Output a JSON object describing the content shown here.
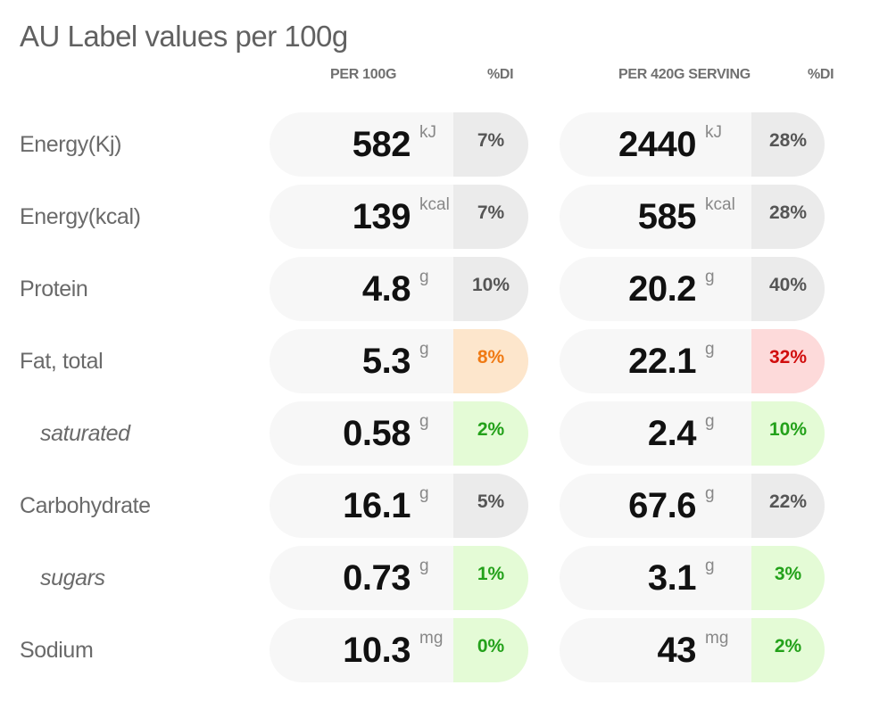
{
  "title": "AU Label values per 100g",
  "headers": {
    "per100": "PER 100G",
    "di1": "%DI",
    "perServing": "PER 420G SERVING",
    "di2": "%DI"
  },
  "status_colors": {
    "neutral": "#ebebeb",
    "good": "#e4fbd6",
    "medium": "#fde6cc",
    "high": "#fddada"
  },
  "rows": [
    {
      "label": "Energy(Kj)",
      "sub": false,
      "per100": {
        "value": "582",
        "unit": "kJ",
        "di": "7%",
        "status": "neutral"
      },
      "serving": {
        "value": "2440",
        "unit": "kJ",
        "di": "28%",
        "status": "neutral"
      }
    },
    {
      "label": "Energy(kcal)",
      "sub": false,
      "per100": {
        "value": "139",
        "unit": "kcal",
        "di": "7%",
        "status": "neutral"
      },
      "serving": {
        "value": "585",
        "unit": "kcal",
        "di": "28%",
        "status": "neutral"
      }
    },
    {
      "label": "Protein",
      "sub": false,
      "per100": {
        "value": "4.8",
        "unit": "g",
        "di": "10%",
        "status": "neutral"
      },
      "serving": {
        "value": "20.2",
        "unit": "g",
        "di": "40%",
        "status": "neutral"
      }
    },
    {
      "label": "Fat, total",
      "sub": false,
      "per100": {
        "value": "5.3",
        "unit": "g",
        "di": "8%",
        "status": "medium"
      },
      "serving": {
        "value": "22.1",
        "unit": "g",
        "di": "32%",
        "status": "high"
      }
    },
    {
      "label": "saturated",
      "sub": true,
      "per100": {
        "value": "0.58",
        "unit": "g",
        "di": "2%",
        "status": "good"
      },
      "serving": {
        "value": "2.4",
        "unit": "g",
        "di": "10%",
        "status": "good"
      }
    },
    {
      "label": "Carbohydrate",
      "sub": false,
      "per100": {
        "value": "16.1",
        "unit": "g",
        "di": "5%",
        "status": "neutral"
      },
      "serving": {
        "value": "67.6",
        "unit": "g",
        "di": "22%",
        "status": "neutral"
      }
    },
    {
      "label": "sugars",
      "sub": true,
      "per100": {
        "value": "0.73",
        "unit": "g",
        "di": "1%",
        "status": "good"
      },
      "serving": {
        "value": "3.1",
        "unit": "g",
        "di": "3%",
        "status": "good"
      }
    },
    {
      "label": "Sodium",
      "sub": false,
      "per100": {
        "value": "10.3",
        "unit": "mg",
        "di": "0%",
        "status": "good"
      },
      "serving": {
        "value": "43",
        "unit": "mg",
        "di": "2%",
        "status": "good"
      }
    }
  ]
}
